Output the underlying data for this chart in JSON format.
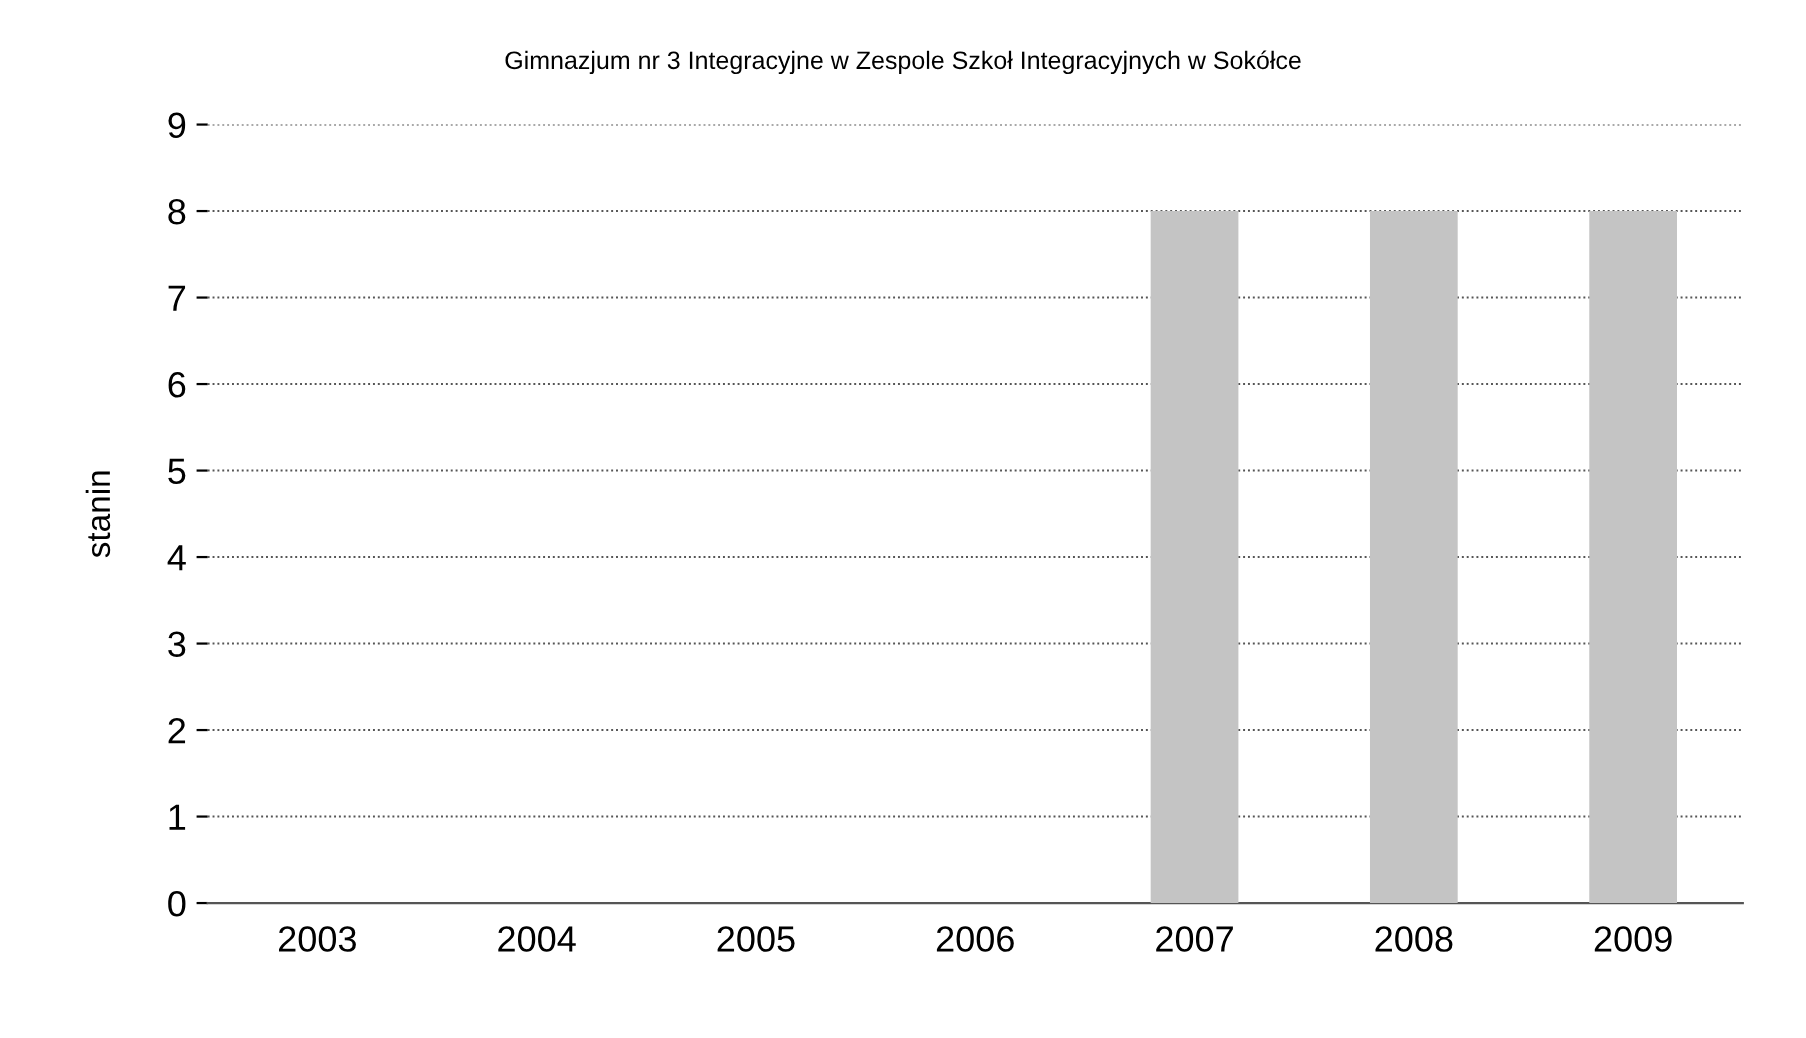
{
  "chart_data": {
    "type": "bar",
    "title": "Gimnazjum nr 3 Integracyjne w Zespole Szkoł Integracyjnych w Sokółce",
    "ylabel": "stanin",
    "categories": [
      "2003",
      "2004",
      "2005",
      "2006",
      "2007",
      "2008",
      "2009"
    ],
    "values": [
      null,
      null,
      null,
      null,
      8,
      8,
      8
    ],
    "color": "#c4c4c4",
    "ylim": [
      0,
      9
    ],
    "yticks": [
      0,
      1,
      2,
      3,
      4,
      5,
      6,
      7,
      8,
      9
    ],
    "grid": "y"
  }
}
